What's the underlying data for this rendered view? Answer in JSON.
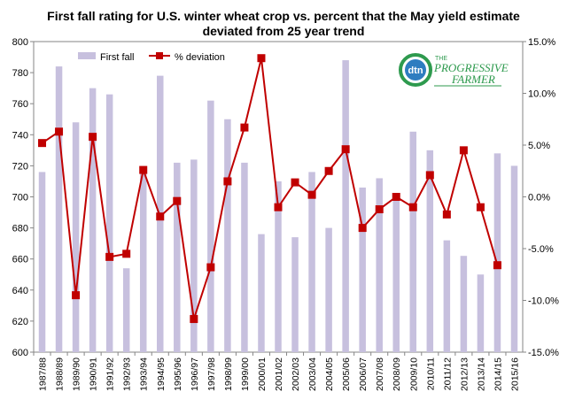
{
  "chart_data": {
    "type": "bar",
    "title_line1": "First fall rating for U.S. winter wheat crop vs. percent that the May yield estimate",
    "title_line2": "deviated from 25 year trend",
    "categories": [
      "1987/88",
      "1988/89",
      "1989/90",
      "1990/91",
      "1991/92",
      "1992/93",
      "1993/94",
      "1994/95",
      "1995/96",
      "1996/97",
      "1997/98",
      "1998/99",
      "1999/00",
      "2000/01",
      "2001/02",
      "2002/03",
      "2003/04",
      "2004/05",
      "2005/06",
      "2006/07",
      "2007/08",
      "2008/09",
      "2009/10",
      "2010/11",
      "2011/12",
      "2012/13",
      "2013/14",
      "2014/15",
      "2015/16"
    ],
    "series": [
      {
        "name": "First fall",
        "kind": "bar",
        "axis": "left",
        "color": "#c7c0de",
        "values": [
          716,
          784,
          748,
          770,
          766,
          654,
          716,
          778,
          722,
          724,
          762,
          750,
          722,
          676,
          710,
          674,
          716,
          680,
          788,
          706,
          712,
          698,
          742,
          730,
          672,
          662,
          650,
          728,
          720
        ]
      },
      {
        "name": "% deviation",
        "kind": "line",
        "axis": "right",
        "color": "#c00000",
        "values": [
          5.2,
          6.3,
          -9.5,
          5.8,
          -5.8,
          -5.5,
          2.6,
          -1.9,
          -0.4,
          -11.8,
          -6.8,
          1.5,
          6.7,
          13.4,
          -1.0,
          1.4,
          0.2,
          2.5,
          4.6,
          -3.0,
          -1.2,
          0.0,
          -1.0,
          2.1,
          -1.7,
          4.5,
          -1.0,
          -6.6,
          null
        ]
      }
    ],
    "y_left": {
      "min": 600,
      "max": 800,
      "step": 20,
      "ticks": [
        "600",
        "620",
        "640",
        "660",
        "680",
        "700",
        "720",
        "740",
        "760",
        "780",
        "800"
      ]
    },
    "y_right": {
      "min": -15,
      "max": 15,
      "step": 5,
      "ticks": [
        "-15.0%",
        "-10.0%",
        "-5.0%",
        "0.0%",
        "5.0%",
        "10.0%",
        "15.0%"
      ]
    },
    "legend_position": "top-left",
    "grid": false
  },
  "logo": {
    "mark": "dtn",
    "line1": "THE",
    "line2": "PROGRESSIVE",
    "line3": "FARMER"
  }
}
